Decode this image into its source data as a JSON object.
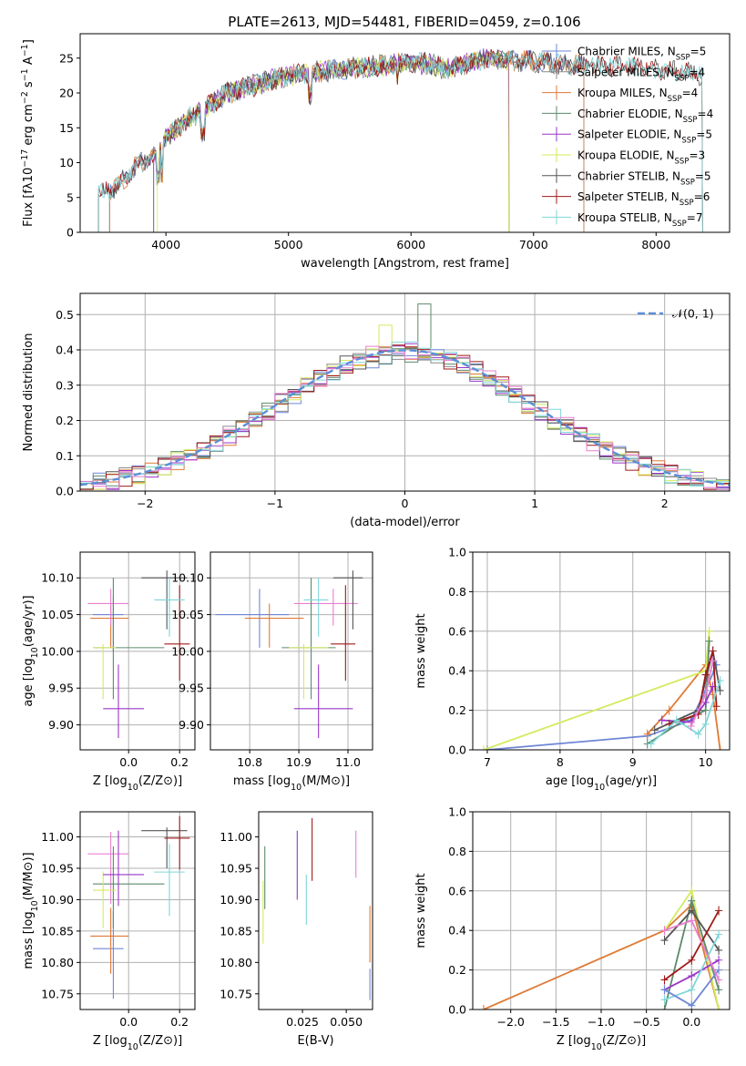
{
  "figure_title": "PLATE=2613, MJD=54481, FIBERID=0459, z=0.106",
  "colors": {
    "Chabrier MILES": "#6f87d6",
    "Salpeter MILES": "#8b8b8b",
    "Kroupa MILES": "#e07a35",
    "Chabrier ELODIE": "#5c8a6c",
    "Salpeter ELODIE": "#9a36c9",
    "Kroupa ELODIE": "#d4ea5e",
    "Chabrier STELIB": "#555555",
    "Salpeter STELIB": "#a01a1a",
    "Kroupa STELIB": "#7fd6d8",
    "normal_fit": "#5b8fd6",
    "pink": "#e87fcf"
  },
  "chart_data": [
    {
      "id": "spectrum",
      "type": "line",
      "xlabel": "wavelength [Angstrom, rest frame]",
      "ylabel": "Flux [f_λ10^-17 erg cm^-2 s^-1 A^-1]",
      "xlim": [
        3300,
        8600
      ],
      "ylim": [
        0,
        28.5
      ],
      "xticks": [
        4000,
        5000,
        6000,
        7000,
        8000
      ],
      "yticks": [
        0,
        5,
        10,
        15,
        20,
        25
      ],
      "grid": false,
      "legend_position": "top-right",
      "legend": [
        {
          "label": "Chabrier MILES, N",
          "sub": "SSP",
          "n": "=5"
        },
        {
          "label": "Salpeter MILES, N",
          "sub": "SSP",
          "n": "=4"
        },
        {
          "label": "Kroupa MILES, N",
          "sub": "SSP",
          "n": "=4"
        },
        {
          "label": "Chabrier ELODIE, N",
          "sub": "SSP",
          "n": "=4"
        },
        {
          "label": "Salpeter ELODIE, N",
          "sub": "SSP",
          "n": "=5"
        },
        {
          "label": "Kroupa ELODIE, N",
          "sub": "SSP",
          "n": "=3"
        },
        {
          "label": "Chabrier STELIB, N",
          "sub": "SSP",
          "n": "=5"
        },
        {
          "label": "Salpeter STELIB, N",
          "sub": "SSP",
          "n": "=6"
        },
        {
          "label": "Kroupa STELIB, N",
          "sub": "SSP",
          "n": "=7"
        }
      ],
      "continuum": {
        "x": [
          3450,
          3600,
          3700,
          3800,
          3900,
          4000,
          4100,
          4200,
          4300,
          4500,
          4800,
          5000,
          5200,
          5500,
          5800,
          6000,
          6300,
          6600,
          7000,
          7400,
          8000,
          8400
        ],
        "y": [
          5.5,
          6.5,
          8.5,
          10,
          11,
          13.5,
          15,
          16.5,
          17.5,
          20,
          21.5,
          22.5,
          23,
          23.5,
          24,
          24.5,
          23.5,
          25,
          24.5,
          24,
          23.5,
          22.5
        ]
      }
    },
    {
      "id": "residual_histogram",
      "type": "step",
      "xlabel": "(data-model)/error",
      "ylabel": "Normed distribution",
      "xlim": [
        -2.5,
        2.5
      ],
      "ylim": [
        0,
        0.56
      ],
      "xticks": [
        -2,
        -1,
        0,
        1,
        2
      ],
      "yticks": [
        0.0,
        0.1,
        0.2,
        0.3,
        0.4,
        0.5
      ],
      "grid": true,
      "legend_position": "top-right",
      "legend_label": "𝒩(0, 1)",
      "bin_width": 0.1,
      "normal": {
        "mean": 0,
        "sigma": 1
      }
    },
    {
      "id": "age_vs_Z",
      "type": "errorbar",
      "xlabel": "Z [log10(Z/Z⊙)]",
      "ylabel": "age  [log10(age/yr)]",
      "xlim": [
        -0.19,
        0.26
      ],
      "ylim": [
        9.866,
        10.135
      ],
      "xticks": [
        0.0,
        0.2
      ],
      "yticks": [
        9.9,
        9.95,
        10.0,
        10.05,
        10.1
      ],
      "grid": true,
      "points": [
        {
          "s": "Chabrier MILES",
          "x": -0.06,
          "xe": [
            0.08,
            0.04
          ],
          "y": 10.05,
          "ye": [
            0.05,
            0.025
          ]
        },
        {
          "s": "Kroupa MILES",
          "x": -0.07,
          "xe": [
            0.08,
            0.07
          ],
          "y": 10.045,
          "ye": [
            0.04,
            0.02
          ]
        },
        {
          "s": "pink",
          "x": -0.07,
          "xe": [
            0.09,
            0.07
          ],
          "y": 10.065,
          "ye": [
            0.03,
            0.02
          ]
        },
        {
          "s": "Chabrier ELODIE",
          "x": -0.06,
          "xe": [
            0.08,
            0.2
          ],
          "y": 10.005,
          "ye": [
            0.07,
            0.095
          ]
        },
        {
          "s": "Kroupa ELODIE",
          "x": -0.1,
          "xe": [
            0.04,
            0.05
          ],
          "y": 10.005,
          "ye": [
            0.07,
            0.005
          ]
        },
        {
          "s": "Salpeter ELODIE",
          "x": -0.04,
          "xe": [
            0.06,
            0.1
          ],
          "y": 9.922,
          "ye": [
            0.04,
            0.06
          ]
        },
        {
          "s": "Chabrier STELIB",
          "x": 0.15,
          "xe": [
            0.1,
            0.08
          ],
          "y": 10.1,
          "ye": [
            0.07,
            0.01
          ]
        },
        {
          "s": "Salpeter STELIB",
          "x": 0.2,
          "xe": [
            0.06,
            0.04
          ],
          "y": 10.01,
          "ye": [
            0.05,
            0.08
          ]
        },
        {
          "s": "Kroupa STELIB",
          "x": 0.16,
          "xe": [
            0.06,
            0.06
          ],
          "y": 10.07,
          "ye": [
            0.05,
            0.03
          ]
        }
      ]
    },
    {
      "id": "age_vs_mass",
      "type": "errorbar",
      "xlabel": "mass [log10(M/M⊙)]",
      "ylabel": "",
      "xlim": [
        10.72,
        11.05
      ],
      "ylim": [
        9.866,
        10.135
      ],
      "xticks": [
        10.8,
        10.9,
        11.0
      ],
      "yticks": [
        9.9,
        9.95,
        10.0,
        10.05,
        10.1
      ],
      "grid": true,
      "points": [
        {
          "s": "Chabrier MILES",
          "x": 10.82,
          "xe": [
            0.09,
            0.06
          ],
          "y": 10.05,
          "ye": [
            0.045,
            0.035
          ]
        },
        {
          "s": "Kroupa MILES",
          "x": 10.84,
          "xe": [
            0.05,
            0.07
          ],
          "y": 10.045,
          "ye": [
            0.04,
            0.02
          ]
        },
        {
          "s": "pink",
          "x": 10.97,
          "xe": [
            0.08,
            0.05
          ],
          "y": 10.065,
          "ye": [
            0.03,
            0.02
          ]
        },
        {
          "s": "Chabrier ELODIE",
          "x": 10.925,
          "xe": [
            0.06,
            0.05
          ],
          "y": 10.005,
          "ye": [
            0.07,
            0.095
          ]
        },
        {
          "s": "Kroupa ELODIE",
          "x": 10.91,
          "xe": [
            0.03,
            0.05
          ],
          "y": 10.005,
          "ye": [
            0.07,
            0.005
          ]
        },
        {
          "s": "Salpeter ELODIE",
          "x": 10.94,
          "xe": [
            0.05,
            0.07
          ],
          "y": 9.922,
          "ye": [
            0.04,
            0.06
          ]
        },
        {
          "s": "Chabrier STELIB",
          "x": 11.01,
          "xe": [
            0.04,
            0.02
          ],
          "y": 10.1,
          "ye": [
            0.07,
            0.01
          ]
        },
        {
          "s": "Salpeter STELIB",
          "x": 10.995,
          "xe": [
            0.03,
            0.02
          ],
          "y": 10.01,
          "ye": [
            0.05,
            0.08
          ]
        },
        {
          "s": "Kroupa STELIB",
          "x": 10.94,
          "xe": [
            0.03,
            0.02
          ],
          "y": 10.07,
          "ye": [
            0.05,
            0.03
          ]
        }
      ]
    },
    {
      "id": "weight_vs_age",
      "type": "line",
      "xlabel": "age  [log10(age/yr)]",
      "ylabel": "mass weight",
      "xlim": [
        6.8,
        10.33
      ],
      "ylim": [
        0,
        1.0
      ],
      "xticks": [
        7,
        8,
        9,
        10
      ],
      "yticks": [
        0.0,
        0.2,
        0.4,
        0.6,
        0.8,
        1.0
      ],
      "grid": true,
      "series": [
        {
          "s": "Chabrier MILES",
          "x": [
            7.0,
            9.2,
            9.8,
            10.0,
            10.15
          ],
          "y": [
            0.0,
            0.07,
            0.15,
            0.3,
            0.43
          ]
        },
        {
          "s": "Kroupa MILES",
          "x": [
            9.2,
            9.5,
            10.0,
            10.1,
            10.2
          ],
          "y": [
            0.08,
            0.2,
            0.43,
            0.28,
            0.0
          ]
        },
        {
          "s": "Kroupa ELODIE",
          "x": [
            6.95,
            10.0,
            10.05
          ],
          "y": [
            0.0,
            0.4,
            0.6
          ]
        },
        {
          "s": "Chabrier ELODIE",
          "x": [
            9.2,
            9.7,
            10.0,
            10.05
          ],
          "y": [
            0.03,
            0.15,
            0.2,
            0.55
          ]
        },
        {
          "s": "Salpeter ELODIE",
          "x": [
            9.4,
            9.8,
            10.0,
            10.1
          ],
          "y": [
            0.15,
            0.14,
            0.24,
            0.32
          ]
        },
        {
          "s": "Chabrier STELIB",
          "x": [
            9.3,
            9.9,
            10.1,
            10.2
          ],
          "y": [
            0.1,
            0.2,
            0.5,
            0.3
          ]
        },
        {
          "s": "Salpeter STELIB",
          "x": [
            9.5,
            9.9,
            10.0,
            10.1,
            10.15
          ],
          "y": [
            0.13,
            0.18,
            0.38,
            0.5,
            0.22
          ]
        },
        {
          "s": "Kroupa STELIB",
          "x": [
            9.25,
            9.6,
            9.9,
            10.0,
            10.2
          ],
          "y": [
            0.03,
            0.15,
            0.08,
            0.13,
            0.35
          ]
        },
        {
          "s": "pink",
          "x": [
            9.8,
            10.0,
            10.1
          ],
          "y": [
            0.12,
            0.28,
            0.45
          ]
        }
      ]
    },
    {
      "id": "mass_vs_Z",
      "type": "errorbar",
      "xlabel": "Z [log10(Z/Z⊙)]",
      "ylabel": "mass [log10(M/M⊙)]",
      "xlim": [
        -0.19,
        0.26
      ],
      "ylim": [
        10.725,
        11.04
      ],
      "xticks": [
        0.0,
        0.2
      ],
      "yticks": [
        10.75,
        10.8,
        10.85,
        10.9,
        10.95,
        11.0
      ],
      "grid": true,
      "points": [
        {
          "s": "Chabrier MILES",
          "x": -0.06,
          "xe": [
            0.08,
            0.04
          ],
          "y": 10.822,
          "ye": [
            0.08,
            0.06
          ]
        },
        {
          "s": "Kroupa MILES",
          "x": -0.07,
          "xe": [
            0.08,
            0.07
          ],
          "y": 10.842,
          "ye": [
            0.06,
            0.045
          ]
        },
        {
          "s": "pink",
          "x": -0.07,
          "xe": [
            0.09,
            0.07
          ],
          "y": 10.973,
          "ye": [
            0.08,
            0.035
          ]
        },
        {
          "s": "Chabrier ELODIE",
          "x": -0.06,
          "xe": [
            0.08,
            0.2
          ],
          "y": 10.925,
          "ye": [
            0.07,
            0.06
          ]
        },
        {
          "s": "Kroupa ELODIE",
          "x": -0.1,
          "xe": [
            0.04,
            0.05
          ],
          "y": 10.915,
          "ye": [
            0.06,
            0.03
          ]
        },
        {
          "s": "Salpeter ELODIE",
          "x": -0.04,
          "xe": [
            0.06,
            0.1
          ],
          "y": 10.94,
          "ye": [
            0.05,
            0.07
          ]
        },
        {
          "s": "Chabrier STELIB",
          "x": 0.15,
          "xe": [
            0.1,
            0.08
          ],
          "y": 11.01,
          "ye": [
            0.06,
            0.005
          ]
        },
        {
          "s": "Salpeter STELIB",
          "x": 0.2,
          "xe": [
            0.06,
            0.04
          ],
          "y": 10.998,
          "ye": [
            0.05,
            0.035
          ]
        },
        {
          "s": "Kroupa STELIB",
          "x": 0.16,
          "xe": [
            0.06,
            0.06
          ],
          "y": 10.944,
          "ye": [
            0.07,
            0.045
          ]
        }
      ]
    },
    {
      "id": "mass_vs_ebv",
      "type": "errorbar",
      "xlabel": "E(B-V)",
      "ylabel": "",
      "xlim": [
        0.0,
        0.065
      ],
      "ylim": [
        10.725,
        11.04
      ],
      "xticks": [
        0.025,
        0.05
      ],
      "xticklabels": [
        "0.025",
        "0.050"
      ],
      "yticks": [
        10.75,
        10.8,
        10.85,
        10.9,
        10.95,
        11.0
      ],
      "grid": false,
      "points": [
        {
          "s": "Chabrier MILES",
          "x": 0.0635,
          "y": 10.765,
          "ye": [
            0.025,
            0.025
          ]
        },
        {
          "s": "Kroupa MILES",
          "x": 0.0635,
          "y": 10.845,
          "ye": [
            0.045,
            0.045
          ]
        },
        {
          "s": "pink",
          "x": 0.0555,
          "y": 10.97,
          "ye": [
            0.035,
            0.04
          ]
        },
        {
          "s": "Chabrier ELODIE",
          "x": 0.0035,
          "y": 10.935,
          "ye": [
            0.05,
            0.05
          ]
        },
        {
          "s": "Kroupa ELODIE",
          "x": 0.0025,
          "y": 10.88,
          "ye": [
            0.05,
            0.05
          ]
        },
        {
          "s": "Salpeter ELODIE",
          "x": 0.022,
          "y": 10.96,
          "ye": [
            0.06,
            0.05
          ]
        },
        {
          "s": "Salpeter STELIB",
          "x": 0.0305,
          "y": 10.98,
          "ye": [
            0.05,
            0.05
          ]
        },
        {
          "s": "Kroupa STELIB",
          "x": 0.0272,
          "y": 10.9,
          "ye": [
            0.04,
            0.04
          ]
        }
      ]
    },
    {
      "id": "weight_vs_Z",
      "type": "line",
      "xlabel": "Z [log10(Z/Z⊙)]",
      "ylabel": "mass weight",
      "xlim": [
        -2.42,
        0.42
      ],
      "ylim": [
        0,
        1.0
      ],
      "xticks": [
        -2.0,
        -1.5,
        -1.0,
        -0.5,
        0.0
      ],
      "yticks": [
        0.0,
        0.2,
        0.4,
        0.6,
        0.8,
        1.0
      ],
      "grid": true,
      "series": [
        {
          "s": "Kroupa MILES",
          "x": [
            -2.3,
            -0.3,
            0.0,
            0.3
          ],
          "y": [
            0.0,
            0.4,
            0.53,
            0.0
          ]
        },
        {
          "s": "Kroupa ELODIE",
          "x": [
            -0.3,
            0.0,
            0.3
          ],
          "y": [
            0.4,
            0.6,
            0.0
          ]
        },
        {
          "s": "Chabrier ELODIE",
          "x": [
            -0.3,
            0.0,
            0.3
          ],
          "y": [
            0.0,
            0.55,
            0.1
          ]
        },
        {
          "s": "Salpeter ELODIE",
          "x": [
            -0.3,
            0.0,
            0.3
          ],
          "y": [
            0.1,
            0.17,
            0.25
          ]
        },
        {
          "s": "Chabrier STELIB",
          "x": [
            -0.3,
            0.0,
            0.3
          ],
          "y": [
            0.35,
            0.5,
            0.3
          ]
        },
        {
          "s": "Salpeter STELIB",
          "x": [
            -0.3,
            0.0,
            0.3
          ],
          "y": [
            0.15,
            0.25,
            0.5
          ]
        },
        {
          "s": "Kroupa STELIB",
          "x": [
            -0.3,
            0.0,
            0.3
          ],
          "y": [
            0.05,
            0.1,
            0.38
          ]
        },
        {
          "s": "Chabrier MILES",
          "x": [
            -0.3,
            0.0,
            0.3
          ],
          "y": [
            0.1,
            0.02,
            0.2
          ]
        },
        {
          "s": "pink",
          "x": [
            -0.3,
            0.0,
            0.3
          ],
          "y": [
            0.4,
            0.45,
            0.15
          ]
        }
      ]
    }
  ]
}
